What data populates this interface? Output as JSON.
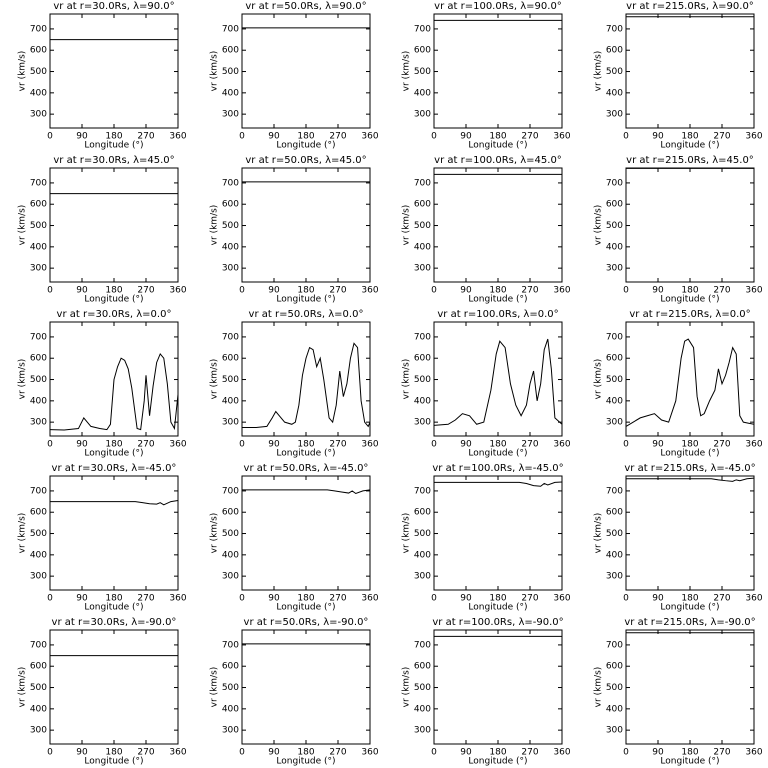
{
  "chart_data": [
    {
      "type": "line",
      "title": "vr at r=30.0Rs, λ=90.0°",
      "x_label": "Longitude (°)",
      "y_label": "vr (km/s)",
      "x": [
        0,
        360
      ],
      "values": [
        650,
        650
      ],
      "xlim": [
        0,
        360
      ],
      "ylim": [
        235,
        770
      ],
      "xticks": [
        0,
        90,
        180,
        270,
        360
      ],
      "yticks": [
        300,
        400,
        500,
        600,
        700
      ],
      "color": "#000000"
    },
    {
      "type": "line",
      "title": "vr at r=50.0Rs, λ=90.0°",
      "x_label": "Longitude (°)",
      "y_label": "vr (km/s)",
      "x": [
        0,
        360
      ],
      "values": [
        705,
        705
      ],
      "xlim": [
        0,
        360
      ],
      "ylim": [
        235,
        770
      ],
      "xticks": [
        0,
        90,
        180,
        270,
        360
      ],
      "yticks": [
        300,
        400,
        500,
        600,
        700
      ],
      "color": "#000000"
    },
    {
      "type": "line",
      "title": "vr at r=100.0Rs, λ=90.0°",
      "x_label": "Longitude (°)",
      "y_label": "vr (km/s)",
      "x": [
        0,
        360
      ],
      "values": [
        740,
        740
      ],
      "xlim": [
        0,
        360
      ],
      "ylim": [
        235,
        770
      ],
      "xticks": [
        0,
        90,
        180,
        270,
        360
      ],
      "yticks": [
        300,
        400,
        500,
        600,
        700
      ],
      "color": "#000000"
    },
    {
      "type": "line",
      "title": "vr at r=215.0Rs, λ=90.0°",
      "x_label": "Longitude (°)",
      "y_label": "vr (km/s)",
      "x": [
        0,
        360
      ],
      "values": [
        757,
        757
      ],
      "xlim": [
        0,
        360
      ],
      "ylim": [
        235,
        770
      ],
      "xticks": [
        0,
        90,
        180,
        270,
        360
      ],
      "yticks": [
        300,
        400,
        500,
        600,
        700
      ],
      "color": "#000000"
    },
    {
      "type": "line",
      "title": "vr at r=30.0Rs, λ=45.0°",
      "x_label": "Longitude (°)",
      "y_label": "vr (km/s)",
      "x": [
        0,
        360
      ],
      "values": [
        650,
        650
      ],
      "xlim": [
        0,
        360
      ],
      "ylim": [
        235,
        770
      ],
      "xticks": [
        0,
        90,
        180,
        270,
        360
      ],
      "yticks": [
        300,
        400,
        500,
        600,
        700
      ],
      "color": "#000000"
    },
    {
      "type": "line",
      "title": "vr at r=50.0Rs, λ=45.0°",
      "x_label": "Longitude (°)",
      "y_label": "vr (km/s)",
      "x": [
        0,
        360
      ],
      "values": [
        705,
        705
      ],
      "xlim": [
        0,
        360
      ],
      "ylim": [
        235,
        770
      ],
      "xticks": [
        0,
        90,
        180,
        270,
        360
      ],
      "yticks": [
        300,
        400,
        500,
        600,
        700
      ],
      "color": "#000000"
    },
    {
      "type": "line",
      "title": "vr at r=100.0Rs, λ=45.0°",
      "x_label": "Longitude (°)",
      "y_label": "vr (km/s)",
      "x": [
        0,
        360
      ],
      "values": [
        740,
        740
      ],
      "xlim": [
        0,
        360
      ],
      "ylim": [
        235,
        770
      ],
      "xticks": [
        0,
        90,
        180,
        270,
        360
      ],
      "yticks": [
        300,
        400,
        500,
        600,
        700
      ],
      "color": "#000000"
    },
    {
      "type": "line",
      "title": "vr at r=215.0Rs, λ=45.0°",
      "x_label": "Longitude (°)",
      "y_label": "vr (km/s)",
      "x": [
        0,
        360
      ],
      "values": [
        768,
        768
      ],
      "xlim": [
        0,
        360
      ],
      "ylim": [
        235,
        770
      ],
      "xticks": [
        0,
        90,
        180,
        270,
        360
      ],
      "yticks": [
        300,
        400,
        500,
        600,
        700
      ],
      "color": "#000000"
    },
    {
      "type": "line",
      "title": "vr at r=30.0Rs, λ=0.0°",
      "x_label": "Longitude (°)",
      "y_label": "vr (km/s)",
      "x": [
        0,
        40,
        80,
        95,
        105,
        115,
        140,
        160,
        170,
        180,
        190,
        200,
        210,
        220,
        230,
        245,
        255,
        265,
        270,
        280,
        290,
        300,
        310,
        320,
        330,
        340,
        350,
        360
      ],
      "values": [
        265,
        263,
        270,
        320,
        300,
        280,
        270,
        265,
        290,
        500,
        560,
        600,
        590,
        550,
        460,
        270,
        265,
        400,
        520,
        330,
        470,
        580,
        620,
        600,
        480,
        300,
        270,
        430
      ],
      "xlim": [
        0,
        360
      ],
      "ylim": [
        235,
        770
      ],
      "xticks": [
        0,
        90,
        180,
        270,
        360
      ],
      "yticks": [
        300,
        400,
        500,
        600,
        700
      ],
      "color": "#000000"
    },
    {
      "type": "line",
      "title": "vr at r=50.0Rs, λ=0.0°",
      "x_label": "Longitude (°)",
      "y_label": "vr (km/s)",
      "x": [
        0,
        40,
        70,
        85,
        95,
        105,
        120,
        140,
        150,
        160,
        170,
        180,
        190,
        200,
        210,
        220,
        230,
        245,
        255,
        265,
        275,
        285,
        295,
        305,
        315,
        325,
        335,
        345,
        355,
        360
      ],
      "values": [
        275,
        275,
        280,
        320,
        350,
        330,
        300,
        290,
        300,
        380,
        520,
        600,
        650,
        640,
        560,
        600,
        500,
        320,
        300,
        380,
        540,
        420,
        480,
        600,
        670,
        650,
        400,
        300,
        280,
        300
      ],
      "xlim": [
        0,
        360
      ],
      "ylim": [
        235,
        770
      ],
      "xticks": [
        0,
        90,
        180,
        270,
        360
      ],
      "yticks": [
        300,
        400,
        500,
        600,
        700
      ],
      "color": "#000000"
    },
    {
      "type": "line",
      "title": "vr at r=100.0Rs, λ=0.0°",
      "x_label": "Longitude (°)",
      "y_label": "vr (km/s)",
      "x": [
        0,
        40,
        60,
        80,
        100,
        120,
        140,
        160,
        175,
        185,
        200,
        215,
        230,
        245,
        260,
        270,
        280,
        290,
        300,
        310,
        320,
        330,
        340,
        360
      ],
      "values": [
        285,
        290,
        310,
        340,
        330,
        290,
        300,
        450,
        620,
        680,
        650,
        480,
        380,
        330,
        380,
        480,
        540,
        400,
        480,
        640,
        690,
        550,
        320,
        290
      ],
      "xlim": [
        0,
        360
      ],
      "ylim": [
        235,
        770
      ],
      "xticks": [
        0,
        90,
        180,
        270,
        360
      ],
      "yticks": [
        300,
        400,
        500,
        600,
        700
      ],
      "color": "#000000"
    },
    {
      "type": "line",
      "title": "vr at r=215.0Rs, λ=0.0°",
      "x_label": "Longitude (°)",
      "y_label": "vr (km/s)",
      "x": [
        0,
        20,
        40,
        60,
        80,
        100,
        120,
        140,
        155,
        165,
        175,
        190,
        200,
        210,
        220,
        235,
        250,
        260,
        270,
        280,
        290,
        300,
        310,
        320,
        330,
        345,
        360
      ],
      "values": [
        280,
        300,
        320,
        330,
        340,
        310,
        300,
        400,
        600,
        680,
        690,
        650,
        420,
        330,
        340,
        400,
        450,
        550,
        480,
        520,
        580,
        650,
        620,
        330,
        300,
        295,
        290
      ],
      "xlim": [
        0,
        360
      ],
      "ylim": [
        235,
        770
      ],
      "xticks": [
        0,
        90,
        180,
        270,
        360
      ],
      "yticks": [
        300,
        400,
        500,
        600,
        700
      ],
      "color": "#000000"
    },
    {
      "type": "line",
      "title": "vr at r=30.0Rs, λ=-45.0°",
      "x_label": "Longitude (°)",
      "y_label": "vr (km/s)",
      "x": [
        0,
        240,
        260,
        280,
        300,
        310,
        320,
        340,
        360
      ],
      "values": [
        650,
        650,
        645,
        640,
        638,
        645,
        635,
        650,
        655
      ],
      "xlim": [
        0,
        360
      ],
      "ylim": [
        235,
        770
      ],
      "xticks": [
        0,
        90,
        180,
        270,
        360
      ],
      "yticks": [
        300,
        400,
        500,
        600,
        700
      ],
      "color": "#000000"
    },
    {
      "type": "line",
      "title": "vr at r=50.0Rs, λ=-45.0°",
      "x_label": "Longitude (°)",
      "y_label": "vr (km/s)",
      "x": [
        0,
        240,
        260,
        280,
        300,
        310,
        320,
        340,
        360
      ],
      "values": [
        705,
        705,
        700,
        695,
        690,
        700,
        688,
        700,
        705
      ],
      "xlim": [
        0,
        360
      ],
      "ylim": [
        235,
        770
      ],
      "xticks": [
        0,
        90,
        180,
        270,
        360
      ],
      "yticks": [
        300,
        400,
        500,
        600,
        700
      ],
      "color": "#000000"
    },
    {
      "type": "line",
      "title": "vr at r=100.0Rs, λ=-45.0°",
      "x_label": "Longitude (°)",
      "y_label": "vr (km/s)",
      "x": [
        0,
        240,
        260,
        280,
        300,
        310,
        320,
        340,
        360
      ],
      "values": [
        740,
        740,
        735,
        725,
        722,
        735,
        728,
        740,
        742
      ],
      "xlim": [
        0,
        360
      ],
      "ylim": [
        235,
        770
      ],
      "xticks": [
        0,
        90,
        180,
        270,
        360
      ],
      "yticks": [
        300,
        400,
        500,
        600,
        700
      ],
      "color": "#000000"
    },
    {
      "type": "line",
      "title": "vr at r=215.0Rs, λ=-45.0°",
      "x_label": "Longitude (°)",
      "y_label": "vr (km/s)",
      "x": [
        0,
        240,
        260,
        280,
        300,
        310,
        320,
        340,
        360
      ],
      "values": [
        757,
        757,
        752,
        748,
        745,
        752,
        748,
        757,
        760
      ],
      "xlim": [
        0,
        360
      ],
      "ylim": [
        235,
        770
      ],
      "xticks": [
        0,
        90,
        180,
        270,
        360
      ],
      "yticks": [
        300,
        400,
        500,
        600,
        700
      ],
      "color": "#000000"
    },
    {
      "type": "line",
      "title": "vr at r=30.0Rs, λ=-90.0°",
      "x_label": "Longitude (°)",
      "y_label": "vr (km/s)",
      "x": [
        0,
        360
      ],
      "values": [
        650,
        650
      ],
      "xlim": [
        0,
        360
      ],
      "ylim": [
        235,
        770
      ],
      "xticks": [
        0,
        90,
        180,
        270,
        360
      ],
      "yticks": [
        300,
        400,
        500,
        600,
        700
      ],
      "color": "#000000"
    },
    {
      "type": "line",
      "title": "vr at r=50.0Rs, λ=-90.0°",
      "x_label": "Longitude (°)",
      "y_label": "vr (km/s)",
      "x": [
        0,
        360
      ],
      "values": [
        705,
        705
      ],
      "xlim": [
        0,
        360
      ],
      "ylim": [
        235,
        770
      ],
      "xticks": [
        0,
        90,
        180,
        270,
        360
      ],
      "yticks": [
        300,
        400,
        500,
        600,
        700
      ],
      "color": "#000000"
    },
    {
      "type": "line",
      "title": "vr at r=100.0Rs, λ=-90.0°",
      "x_label": "Longitude (°)",
      "y_label": "vr (km/s)",
      "x": [
        0,
        360
      ],
      "values": [
        740,
        740
      ],
      "xlim": [
        0,
        360
      ],
      "ylim": [
        235,
        770
      ],
      "xticks": [
        0,
        90,
        180,
        270,
        360
      ],
      "yticks": [
        300,
        400,
        500,
        600,
        700
      ],
      "color": "#000000"
    },
    {
      "type": "line",
      "title": "vr at r=215.0Rs, λ=-90.0°",
      "x_label": "Longitude (°)",
      "y_label": "vr (km/s)",
      "x": [
        0,
        360
      ],
      "values": [
        757,
        757
      ],
      "xlim": [
        0,
        360
      ],
      "ylim": [
        235,
        770
      ],
      "xticks": [
        0,
        90,
        180,
        270,
        360
      ],
      "yticks": [
        300,
        400,
        500,
        600,
        700
      ],
      "color": "#000000"
    }
  ]
}
